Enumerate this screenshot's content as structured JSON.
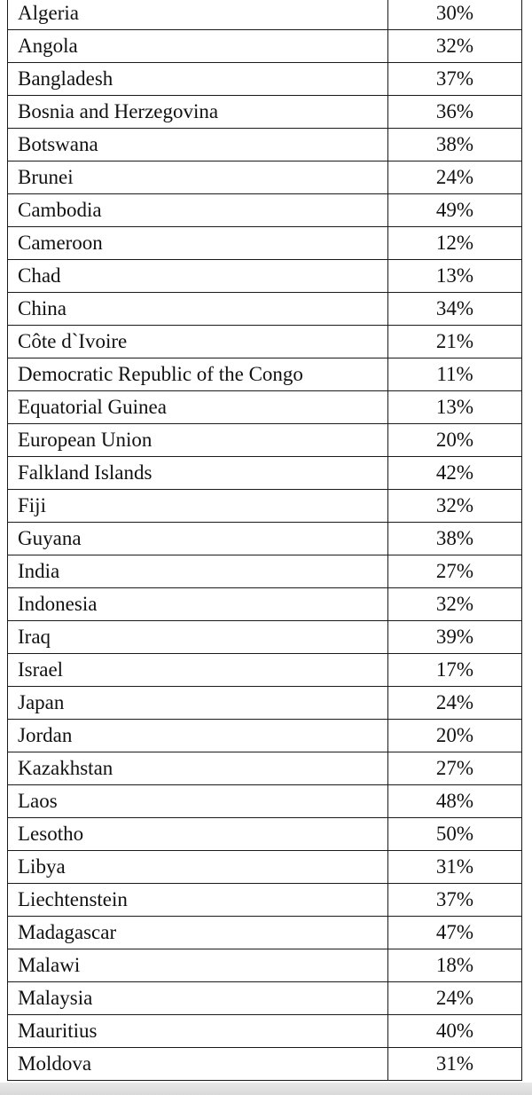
{
  "table": {
    "rows": [
      {
        "country": "Algeria",
        "value": "30%"
      },
      {
        "country": "Angola",
        "value": "32%"
      },
      {
        "country": "Bangladesh",
        "value": "37%"
      },
      {
        "country": "Bosnia and Herzegovina",
        "value": "36%"
      },
      {
        "country": "Botswana",
        "value": "38%"
      },
      {
        "country": "Brunei",
        "value": "24%"
      },
      {
        "country": "Cambodia",
        "value": "49%"
      },
      {
        "country": "Cameroon",
        "value": "12%"
      },
      {
        "country": "Chad",
        "value": "13%"
      },
      {
        "country": "China",
        "value": "34%"
      },
      {
        "country": "Côte d`Ivoire",
        "value": "21%"
      },
      {
        "country": "Democratic Republic of the Congo",
        "value": "11%"
      },
      {
        "country": "Equatorial Guinea",
        "value": "13%"
      },
      {
        "country": "European Union",
        "value": "20%"
      },
      {
        "country": "Falkland Islands",
        "value": "42%"
      },
      {
        "country": "Fiji",
        "value": "32%"
      },
      {
        "country": "Guyana",
        "value": "38%"
      },
      {
        "country": "India",
        "value": "27%"
      },
      {
        "country": "Indonesia",
        "value": "32%"
      },
      {
        "country": "Iraq",
        "value": "39%"
      },
      {
        "country": "Israel",
        "value": "17%"
      },
      {
        "country": "Japan",
        "value": "24%"
      },
      {
        "country": "Jordan",
        "value": "20%"
      },
      {
        "country": "Kazakhstan",
        "value": "27%"
      },
      {
        "country": "Laos",
        "value": "48%"
      },
      {
        "country": "Lesotho",
        "value": "50%"
      },
      {
        "country": "Libya",
        "value": "31%"
      },
      {
        "country": "Liechtenstein",
        "value": "37%"
      },
      {
        "country": "Madagascar",
        "value": "47%"
      },
      {
        "country": "Malawi",
        "value": "18%"
      },
      {
        "country": "Malaysia",
        "value": "24%"
      },
      {
        "country": "Mauritius",
        "value": "40%"
      },
      {
        "country": "Moldova",
        "value": "31%"
      }
    ]
  }
}
